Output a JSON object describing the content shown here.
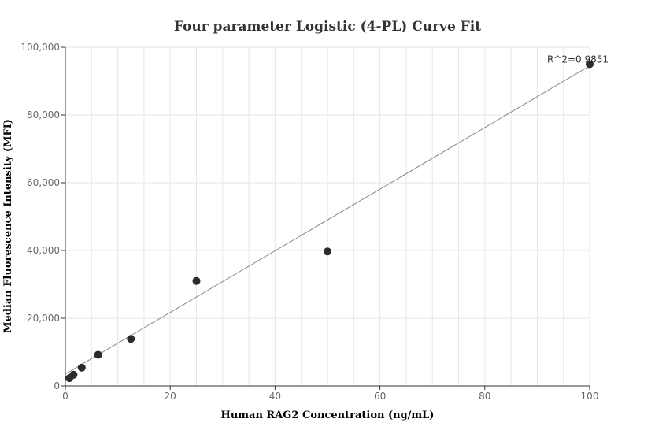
{
  "chart_data": {
    "type": "scatter",
    "title": "Four parameter Logistic (4-PL) Curve Fit",
    "xlabel": "Human RAG2 Concentration (ng/mL)",
    "ylabel": "Median Fluorescence Intensity (MFI)",
    "xlim": [
      0,
      100
    ],
    "ylim": [
      0,
      100000
    ],
    "x_ticks": [
      0,
      20,
      40,
      60,
      80,
      100
    ],
    "y_ticks": [
      0,
      20000,
      40000,
      60000,
      80000,
      100000
    ],
    "x_tick_labels": [
      "0",
      "20",
      "40",
      "60",
      "80",
      "100"
    ],
    "y_tick_labels": [
      "0",
      "20,000",
      "40,000",
      "60,000",
      "80,000",
      "100,000"
    ],
    "grid": true,
    "series": [
      {
        "points": [
          {
            "x": 0.78,
            "y": 2300
          },
          {
            "x": 1.56,
            "y": 3300
          },
          {
            "x": 3.13,
            "y": 5400
          },
          {
            "x": 6.25,
            "y": 9200
          },
          {
            "x": 12.5,
            "y": 13900
          },
          {
            "x": 25,
            "y": 31000
          },
          {
            "x": 50,
            "y": 39700
          },
          {
            "x": 100,
            "y": 95000
          }
        ]
      }
    ],
    "fit_curve": {
      "points": [
        {
          "x": 0,
          "y": 3500
        },
        {
          "x": 100,
          "y": 94500
        }
      ]
    },
    "annotation": {
      "text": "R^2=0.9851",
      "x": 100,
      "y": 95000
    }
  }
}
